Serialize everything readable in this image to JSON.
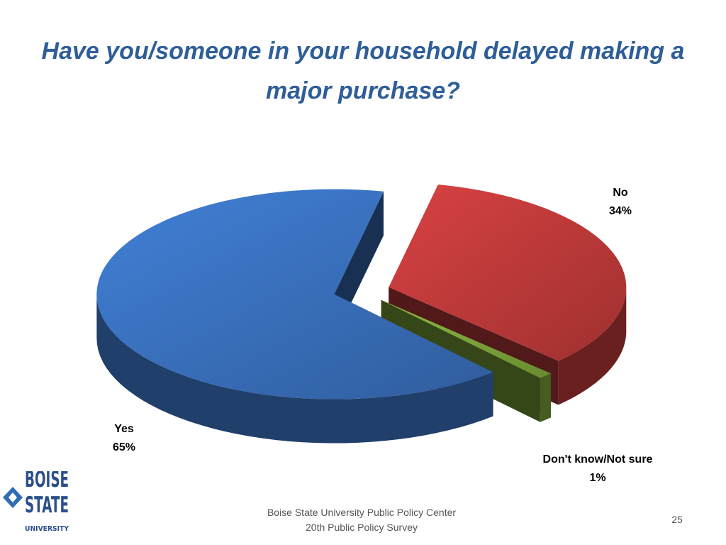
{
  "chart_data": {
    "type": "pie",
    "title": "Have you/someone in your household delayed making a major purchase?",
    "categories": [
      "Yes",
      "No",
      "Don't know/Not sure"
    ],
    "values": [
      65,
      34,
      1
    ],
    "value_labels": [
      "65%",
      "34%",
      "1%"
    ],
    "colors": [
      "#3a72c0",
      "#c23b3b",
      "#7fa83c"
    ]
  },
  "footer": {
    "lines": [
      "Boise State University  Public Policy Center",
      "20th Public Policy Survey"
    ],
    "page_number": "25"
  },
  "logo": {
    "lines": [
      "BOISE",
      "STATE",
      "UNIVERSITY"
    ]
  }
}
